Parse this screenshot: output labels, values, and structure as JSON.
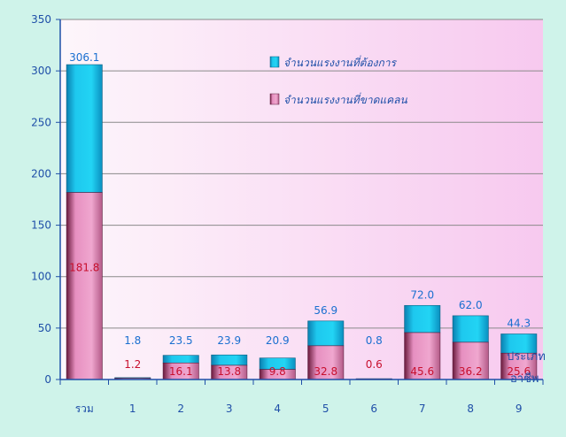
{
  "chart_data": {
    "type": "bar",
    "stacked": true,
    "categories": [
      "รวม",
      "1",
      "2",
      "3",
      "4",
      "5",
      "6",
      "7",
      "8",
      "9"
    ],
    "series": [
      {
        "name": "จำนวนแรงงานที่ขาดแคลน",
        "values": [
          181.8,
          1.2,
          16.1,
          13.8,
          9.8,
          32.8,
          0.6,
          45.6,
          36.2,
          25.6
        ],
        "labels": [
          "181.8",
          "1.2",
          "16.1",
          "13.8",
          "9.8",
          "32.8",
          "0.6",
          "45.6",
          "36.2",
          "25.6"
        ],
        "color": "#e68fc0"
      },
      {
        "name": "จำนวนแรงงานที่ต้องการ",
        "totals": [
          306.1,
          1.8,
          23.5,
          23.9,
          20.9,
          56.9,
          0.8,
          72.0,
          62.0,
          44.3
        ],
        "labels": [
          "306.1",
          "1.8",
          "23.5",
          "23.9",
          "20.9",
          "56.9",
          "0.8",
          "72.0",
          "62.0",
          "44.3"
        ],
        "color": "#1ec8ee"
      }
    ],
    "xlabel": "ประเภทอาชีพ",
    "xlabel_lines": [
      "ประเภท",
      "อาชีพ"
    ],
    "ylabel": "",
    "ylim": [
      0,
      350
    ],
    "yticks": [
      "0",
      "50",
      "100",
      "150",
      "200",
      "250",
      "300",
      "350"
    ],
    "ytick_values": [
      0,
      50,
      100,
      150,
      200,
      250,
      300,
      350
    ],
    "grid": true,
    "legend": "top-right",
    "colors": {
      "page_background": "#cff3ea",
      "plot_gradient_left": "#fdf6fb",
      "plot_gradient_right": "#f7c9ef",
      "total_label": "#1a6fd0",
      "shortage_label": "#c8102e",
      "axis_text": "#1f4fa8"
    }
  }
}
